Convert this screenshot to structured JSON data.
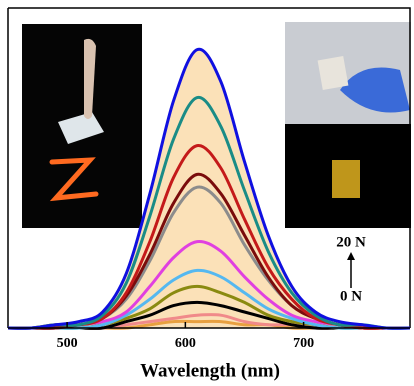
{
  "chart_data": {
    "type": "line",
    "x_label": "Wavelength (nm)",
    "x": [
      450,
      470,
      490,
      510,
      530,
      550,
      570,
      590,
      610,
      630,
      650,
      670,
      690,
      710,
      730,
      750,
      770,
      790
    ],
    "xlim": [
      450,
      790
    ],
    "xticks": [
      500,
      600,
      700
    ],
    "ylim": [
      0,
      1
    ],
    "area_fill": "#fbe1b8",
    "series": [
      {
        "color": "#1010e0",
        "values": [
          0,
          0,
          0.01,
          0.02,
          0.05,
          0.17,
          0.42,
          0.71,
          0.87,
          0.77,
          0.52,
          0.29,
          0.13,
          0.05,
          0.02,
          0.01,
          0,
          0
        ]
      },
      {
        "color": "#1a8c86",
        "values": [
          0,
          0,
          0.01,
          0.01,
          0.04,
          0.14,
          0.35,
          0.59,
          0.72,
          0.63,
          0.43,
          0.24,
          0.11,
          0.04,
          0.01,
          0.01,
          0,
          0
        ]
      },
      {
        "color": "#c41a1a",
        "values": [
          0,
          0,
          0.01,
          0.01,
          0.03,
          0.11,
          0.27,
          0.47,
          0.57,
          0.5,
          0.34,
          0.19,
          0.09,
          0.03,
          0.01,
          0,
          0,
          0
        ]
      },
      {
        "color": "#7a0c0c",
        "values": [
          0,
          0,
          0,
          0.01,
          0.03,
          0.1,
          0.23,
          0.39,
          0.48,
          0.42,
          0.29,
          0.16,
          0.07,
          0.03,
          0.01,
          0,
          0,
          0
        ]
      },
      {
        "color": "#8c8c8c",
        "values": [
          0,
          0,
          0,
          0.01,
          0.03,
          0.09,
          0.21,
          0.36,
          0.44,
          0.39,
          0.26,
          0.15,
          0.07,
          0.03,
          0.01,
          0,
          0,
          0
        ]
      },
      {
        "color": "#e040e0",
        "values": [
          0,
          0,
          0,
          0.01,
          0.02,
          0.05,
          0.13,
          0.22,
          0.27,
          0.24,
          0.16,
          0.09,
          0.04,
          0.02,
          0.01,
          0,
          0,
          0
        ]
      },
      {
        "color": "#55b8f0",
        "values": [
          0,
          0,
          0,
          0,
          0.01,
          0.04,
          0.09,
          0.15,
          0.18,
          0.16,
          0.11,
          0.06,
          0.03,
          0.01,
          0,
          0,
          0,
          0
        ]
      },
      {
        "color": "#8a8a10",
        "values": [
          0,
          0,
          0,
          0,
          0.01,
          0.03,
          0.06,
          0.11,
          0.13,
          0.11,
          0.08,
          0.04,
          0.02,
          0.01,
          0,
          0,
          0,
          0
        ]
      },
      {
        "color": "#000000",
        "values": [
          0,
          0,
          0,
          0,
          0,
          0.02,
          0.04,
          0.07,
          0.08,
          0.07,
          0.05,
          0.03,
          0.01,
          0,
          0,
          0,
          0,
          0
        ]
      },
      {
        "color": "#f08a8a",
        "values": [
          0,
          0,
          0,
          0,
          0,
          0.01,
          0.02,
          0.03,
          0.04,
          0.04,
          0.02,
          0.01,
          0.01,
          0,
          0,
          0,
          0,
          0
        ]
      },
      {
        "color": "#e8a040",
        "values": [
          0,
          0,
          0,
          0,
          0,
          0,
          0.01,
          0.02,
          0.02,
          0.02,
          0.01,
          0.01,
          0,
          0,
          0,
          0,
          0,
          0
        ]
      }
    ],
    "annotations": [
      "20 N",
      "0 N"
    ]
  }
}
